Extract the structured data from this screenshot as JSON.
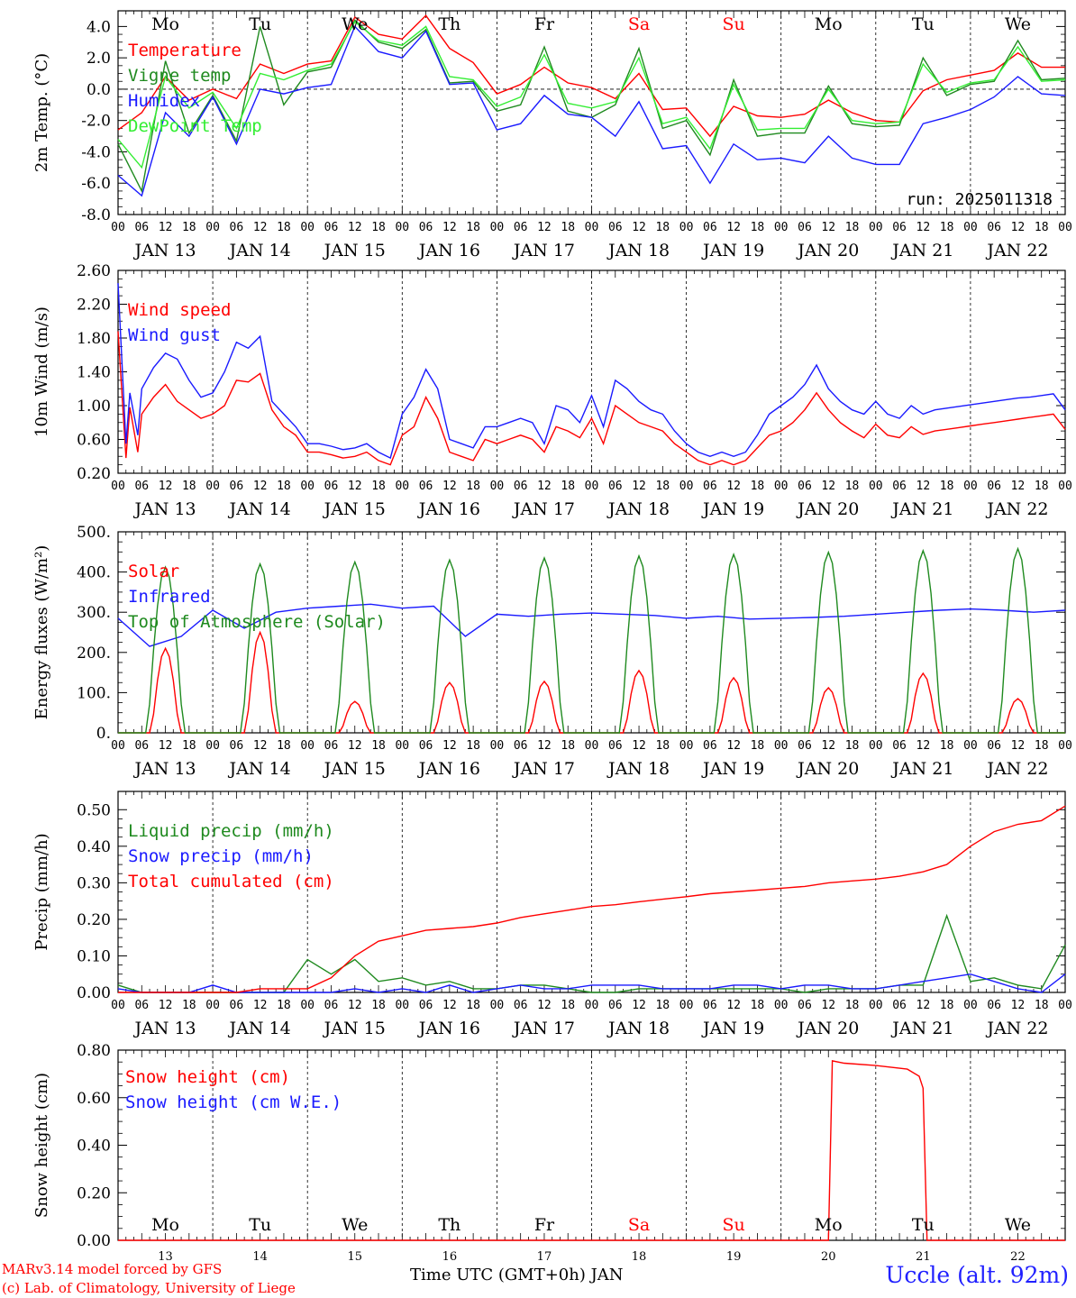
{
  "run_label": "run: 2025011318",
  "day_labels": [
    {
      "label": "Mo",
      "weekend": false
    },
    {
      "label": "Tu",
      "weekend": false
    },
    {
      "label": "We",
      "weekend": false
    },
    {
      "label": "Th",
      "weekend": false
    },
    {
      "label": "Fr",
      "weekend": false
    },
    {
      "label": "Sa",
      "weekend": true
    },
    {
      "label": "Su",
      "weekend": true
    },
    {
      "label": "Mo",
      "weekend": false
    },
    {
      "label": "Tu",
      "weekend": false
    },
    {
      "label": "We",
      "weekend": false
    }
  ],
  "date_labels": [
    "JAN 13",
    "JAN 14",
    "JAN 15",
    "JAN 16",
    "JAN 17",
    "JAN 18",
    "JAN 19",
    "JAN 20",
    "JAN 21",
    "JAN 22"
  ],
  "hour_ticks": [
    "00",
    "06",
    "12",
    "18"
  ],
  "day_numbers": [
    "13",
    "14",
    "15",
    "16",
    "17",
    "18",
    "19",
    "20",
    "21",
    "22"
  ],
  "footer": {
    "credit_line1": "MARv3.14 model forced by GFS",
    "credit_line2": "(c) Lab. of Climatology, University of Liege",
    "x_label": "Time UTC (GMT+0h) JAN",
    "station": "Uccle (alt. 92m)"
  },
  "colors": {
    "red": "#ff0000",
    "green": "#1f8a1f",
    "blue": "#1a1aff",
    "lightgreen": "#33ee33",
    "weekend": "#ff0000"
  },
  "chart_data": [
    {
      "type": "line",
      "ylabel": "2m Temp. (°C)",
      "ylim": [
        -8,
        5
      ],
      "yticks": [
        "4.0",
        "2.0",
        "0.0",
        "-2.0",
        "-4.0",
        "-6.0",
        "-8.0"
      ],
      "ytick_values": [
        4,
        2,
        0,
        -2,
        -4,
        -6,
        -8
      ],
      "zero_line": true,
      "x_hours": [
        0,
        6,
        12,
        18,
        24,
        30,
        36,
        42,
        48,
        54,
        60,
        66,
        72,
        78,
        84,
        90,
        96,
        102,
        108,
        114,
        120,
        126,
        132,
        138,
        144,
        150,
        156,
        162,
        168,
        174,
        180,
        186,
        192,
        198,
        204,
        210,
        216,
        222,
        228,
        234,
        240
      ],
      "series": [
        {
          "name": "Temperature",
          "color": "red",
          "values": [
            -2.6,
            -1.5,
            0.8,
            -0.7,
            0.0,
            -0.6,
            1.6,
            1.0,
            1.6,
            1.8,
            4.6,
            3.5,
            3.2,
            4.7,
            2.6,
            1.7,
            -0.3,
            0.3,
            1.4,
            0.4,
            0.1,
            -0.6,
            1.0,
            -1.3,
            -1.2,
            -3.0,
            -1.1,
            -1.7,
            -1.8,
            -1.6,
            -0.7,
            -1.5,
            -2.0,
            -2.1,
            -0.1,
            0.6,
            0.9,
            1.2,
            2.3,
            1.4,
            1.4
          ]
        },
        {
          "name": "Vigne temp",
          "color": "green",
          "values": [
            -3.5,
            -6.5,
            1.8,
            -2.8,
            -0.4,
            -3.3,
            4.0,
            -1.0,
            1.1,
            1.4,
            4.4,
            3.0,
            2.6,
            3.8,
            0.4,
            0.5,
            -1.4,
            -1.0,
            2.7,
            -1.4,
            -1.8,
            -1.0,
            2.6,
            -2.5,
            -2.0,
            -4.2,
            0.6,
            -3.0,
            -2.8,
            -2.8,
            0.2,
            -2.2,
            -2.4,
            -2.3,
            2.0,
            -0.4,
            0.3,
            0.5,
            3.1,
            0.6,
            0.7
          ]
        },
        {
          "name": "Humidex",
          "color": "blue",
          "values": [
            -5.5,
            -6.8,
            -1.5,
            -3.0,
            -0.5,
            -3.5,
            0.0,
            -0.3,
            0.1,
            0.3,
            4.0,
            2.4,
            2.0,
            3.7,
            0.3,
            0.4,
            -2.6,
            -2.2,
            -0.4,
            -1.6,
            -1.8,
            -3.0,
            -0.8,
            -3.8,
            -3.6,
            -6.0,
            -3.5,
            -4.5,
            -4.4,
            -4.7,
            -3.0,
            -4.4,
            -4.8,
            -4.8,
            -2.2,
            -1.8,
            -1.3,
            -0.5,
            0.8,
            -0.3,
            -0.4
          ]
        },
        {
          "name": "DewPoint Temp",
          "color": "lightgreen",
          "values": [
            -3.2,
            -5.0,
            0.8,
            -1.2,
            -0.2,
            -2.5,
            1.0,
            0.6,
            1.2,
            1.6,
            4.3,
            3.1,
            2.8,
            4.0,
            0.8,
            0.6,
            -1.1,
            -0.5,
            2.2,
            -0.9,
            -1.2,
            -0.8,
            2.0,
            -2.2,
            -1.8,
            -3.8,
            0.3,
            -2.6,
            -2.5,
            -2.5,
            0.0,
            -2.0,
            -2.2,
            -2.1,
            1.6,
            -0.2,
            0.4,
            0.6,
            2.7,
            0.5,
            0.6
          ]
        }
      ],
      "legend": [
        "Temperature",
        "Vigne temp",
        "Humidex",
        "DewPoint Temp"
      ]
    },
    {
      "type": "line",
      "ylabel": "10m Wind (m/s)",
      "ylim": [
        0.2,
        2.6
      ],
      "yticks": [
        "2.60",
        "2.20",
        "1.80",
        "1.40",
        "1.00",
        "0.60",
        "0.20"
      ],
      "ytick_values": [
        2.6,
        2.2,
        1.8,
        1.4,
        1.0,
        0.6,
        0.2
      ],
      "x_hours": [
        0,
        2,
        3,
        5,
        6,
        9,
        12,
        15,
        18,
        21,
        24,
        27,
        30,
        33,
        36,
        39,
        42,
        45,
        48,
        51,
        54,
        57,
        60,
        63,
        66,
        69,
        72,
        75,
        78,
        81,
        84,
        87,
        90,
        93,
        96,
        99,
        102,
        105,
        108,
        111,
        114,
        117,
        120,
        123,
        126,
        129,
        132,
        135,
        138,
        141,
        144,
        147,
        150,
        153,
        156,
        159,
        162,
        165,
        168,
        171,
        174,
        177,
        180,
        183,
        186,
        189,
        192,
        195,
        198,
        201,
        204,
        207,
        210,
        213,
        216,
        219,
        222,
        225,
        228,
        231,
        234,
        237,
        240
      ],
      "series": [
        {
          "name": "Wind speed",
          "color": "red",
          "values": [
            1.88,
            0.38,
            0.98,
            0.45,
            0.9,
            1.1,
            1.25,
            1.05,
            0.95,
            0.85,
            0.9,
            1.0,
            1.3,
            1.28,
            1.38,
            0.95,
            0.75,
            0.65,
            0.45,
            0.45,
            0.42,
            0.38,
            0.4,
            0.45,
            0.35,
            0.3,
            0.65,
            0.75,
            1.1,
            0.85,
            0.45,
            0.4,
            0.35,
            0.6,
            0.55,
            0.6,
            0.65,
            0.6,
            0.45,
            0.75,
            0.7,
            0.62,
            0.85,
            0.55,
            1.0,
            0.9,
            0.8,
            0.75,
            0.7,
            0.55,
            0.45,
            0.35,
            0.3,
            0.35,
            0.3,
            0.35,
            0.5,
            0.65,
            0.7,
            0.8,
            0.95,
            1.15,
            0.95,
            0.8,
            0.7,
            0.62,
            0.78,
            0.65,
            0.62,
            0.75,
            0.66,
            0.7,
            0.72,
            0.74,
            0.76,
            0.78,
            0.8,
            0.82,
            0.84,
            0.86,
            0.88,
            0.9,
            0.72
          ]
        },
        {
          "name": "Wind gust",
          "color": "blue",
          "values": [
            2.45,
            0.55,
            1.15,
            0.65,
            1.2,
            1.45,
            1.62,
            1.55,
            1.3,
            1.1,
            1.15,
            1.4,
            1.75,
            1.68,
            1.82,
            1.05,
            0.9,
            0.75,
            0.55,
            0.55,
            0.52,
            0.48,
            0.5,
            0.55,
            0.45,
            0.38,
            0.9,
            1.1,
            1.43,
            1.2,
            0.6,
            0.55,
            0.5,
            0.75,
            0.75,
            0.8,
            0.85,
            0.8,
            0.55,
            1.0,
            0.95,
            0.8,
            1.12,
            0.75,
            1.3,
            1.2,
            1.05,
            0.95,
            0.9,
            0.7,
            0.55,
            0.45,
            0.4,
            0.45,
            0.4,
            0.45,
            0.65,
            0.9,
            1.0,
            1.1,
            1.25,
            1.48,
            1.2,
            1.05,
            0.95,
            0.9,
            1.05,
            0.9,
            0.85,
            1.0,
            0.9,
            0.95,
            0.97,
            0.99,
            1.01,
            1.03,
            1.05,
            1.07,
            1.09,
            1.1,
            1.12,
            1.14,
            0.95
          ]
        }
      ],
      "legend": [
        "Wind speed",
        "Wind gust"
      ]
    },
    {
      "type": "line",
      "ylabel": "Energy fluxes (W/m²)",
      "ylim": [
        0,
        500
      ],
      "yticks": [
        "500.",
        "400.",
        "300.",
        "200.",
        "100.",
        "0."
      ],
      "ytick_values": [
        500,
        400,
        300,
        200,
        100,
        0
      ],
      "series": [
        {
          "name": "Solar",
          "color": "red",
          "daily_peaks": [
            210,
            250,
            78,
            125,
            128,
            155,
            137,
            112,
            148,
            85
          ]
        },
        {
          "name": "Infrared",
          "color": "blue",
          "values": [
            285,
            215,
            240,
            305,
            260,
            300,
            310,
            315,
            320,
            310,
            315,
            240,
            295,
            290,
            295,
            298,
            295,
            292,
            285,
            290,
            283,
            285,
            287,
            290,
            295,
            300,
            305,
            308,
            305,
            300,
            305
          ]
        },
        {
          "name": "Top of Atmosphere (Solar)",
          "color": "green",
          "daily_peaks": [
            412,
            420,
            425,
            430,
            435,
            440,
            444,
            449,
            453,
            458
          ]
        }
      ],
      "legend": [
        "Solar",
        "Infrared",
        "Top of Atmosphere (Solar)"
      ]
    },
    {
      "type": "line",
      "ylabel": "Precip (mm/h)",
      "ylim": [
        0,
        0.55
      ],
      "yticks": [
        "0.50",
        "0.40",
        "0.30",
        "0.20",
        "0.10",
        "0.00"
      ],
      "ytick_values": [
        0.5,
        0.4,
        0.3,
        0.2,
        0.1,
        0.0
      ],
      "x_hours": [
        0,
        6,
        12,
        18,
        24,
        30,
        36,
        42,
        48,
        54,
        60,
        66,
        72,
        78,
        84,
        90,
        96,
        102,
        108,
        114,
        120,
        126,
        132,
        138,
        144,
        150,
        156,
        162,
        168,
        174,
        180,
        186,
        192,
        198,
        204,
        210,
        216,
        222,
        228,
        234,
        240
      ],
      "series": [
        {
          "name": "Liquid precip (mm/h)",
          "color": "green",
          "values": [
            0.02,
            0.0,
            0.0,
            0.0,
            0.0,
            0.0,
            0.0,
            0.0,
            0.09,
            0.05,
            0.09,
            0.03,
            0.04,
            0.02,
            0.03,
            0.01,
            0.01,
            0.02,
            0.02,
            0.01,
            0.0,
            0.0,
            0.01,
            0.01,
            0.01,
            0.01,
            0.01,
            0.01,
            0.01,
            0.0,
            0.01,
            0.01,
            0.01,
            0.02,
            0.02,
            0.21,
            0.03,
            0.04,
            0.02,
            0.01,
            0.13
          ]
        },
        {
          "name": "Snow precip (mm/h)",
          "color": "blue",
          "values": [
            0.01,
            0.0,
            0.0,
            0.0,
            0.02,
            0.0,
            0.0,
            0.0,
            0.0,
            0.0,
            0.01,
            0.0,
            0.01,
            0.0,
            0.02,
            0.0,
            0.01,
            0.02,
            0.01,
            0.01,
            0.02,
            0.02,
            0.02,
            0.01,
            0.01,
            0.01,
            0.02,
            0.02,
            0.01,
            0.02,
            0.02,
            0.01,
            0.01,
            0.02,
            0.03,
            0.04,
            0.05,
            0.03,
            0.01,
            0.0,
            0.05
          ]
        },
        {
          "name": "Total cumulated (cm)",
          "color": "red",
          "values": [
            0.0,
            0.0,
            0.0,
            0.0,
            0.0,
            0.0,
            0.01,
            0.01,
            0.01,
            0.04,
            0.1,
            0.14,
            0.155,
            0.17,
            0.175,
            0.18,
            0.19,
            0.205,
            0.215,
            0.225,
            0.235,
            0.24,
            0.248,
            0.255,
            0.262,
            0.27,
            0.275,
            0.28,
            0.285,
            0.29,
            0.3,
            0.305,
            0.31,
            0.318,
            0.33,
            0.35,
            0.4,
            0.44,
            0.46,
            0.47,
            0.51
          ]
        }
      ],
      "legend": [
        "Liquid precip (mm/h)",
        "Snow precip (mm/h)",
        "Total cumulated (cm)"
      ]
    },
    {
      "type": "line",
      "ylabel": "Snow height (cm)",
      "ylim": [
        0,
        0.8
      ],
      "yticks": [
        "0.80",
        "0.60",
        "0.40",
        "0.20",
        "0.00"
      ],
      "ytick_values": [
        0.8,
        0.6,
        0.4,
        0.2,
        0.0
      ],
      "series": [
        {
          "name": "Snow height (cm)",
          "color": "red",
          "points": [
            [
              0,
              0
            ],
            [
              180,
              0
            ],
            [
              181,
              0.755
            ],
            [
              184,
              0.745
            ],
            [
              192,
              0.735
            ],
            [
              200,
              0.72
            ],
            [
              203,
              0.69
            ],
            [
              204,
              0.64
            ],
            [
              205,
              0.0
            ],
            [
              240,
              0.0
            ]
          ]
        },
        {
          "name": "Snow height (cm W.E.)",
          "color": "blue",
          "points": []
        }
      ],
      "legend": [
        "Snow height (cm)",
        "Snow height (cm W.E.)"
      ]
    }
  ]
}
